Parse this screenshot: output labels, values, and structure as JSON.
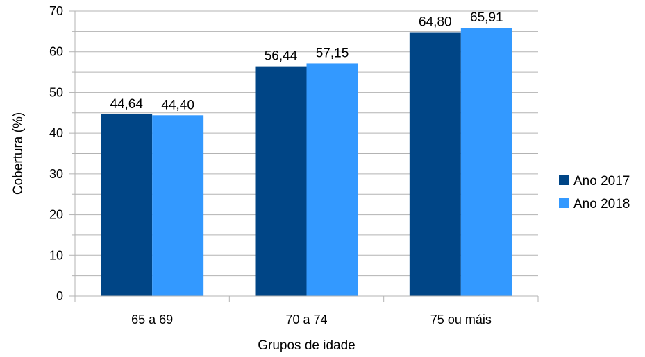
{
  "chart_data": {
    "type": "bar",
    "categories": [
      "65 a 69",
      "70 a 74",
      "75 ou máis"
    ],
    "series": [
      {
        "name": "Ano 2017",
        "values": [
          44.64,
          56.44,
          64.8
        ],
        "labels": [
          "44,64",
          "56,44",
          "64,80"
        ],
        "color": "#004586"
      },
      {
        "name": "Ano 2018",
        "values": [
          44.4,
          57.15,
          65.91
        ],
        "labels": [
          "44,40",
          "57,15",
          "65,91"
        ],
        "color": "#3399FF"
      }
    ],
    "title": "",
    "xlabel": "Grupos de idade",
    "ylabel": "Cobertura (%)",
    "ylim": [
      0,
      70
    ],
    "major_tick_step": 10,
    "minor_tick_step": 5,
    "grid": true,
    "legend_position": "right"
  }
}
